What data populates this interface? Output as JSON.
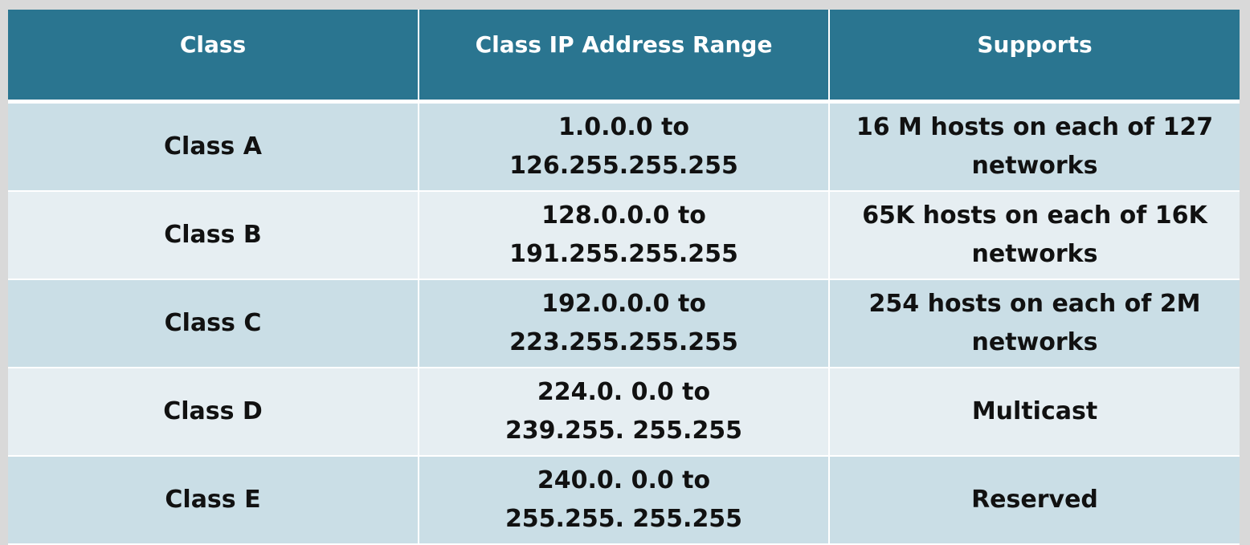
{
  "table": {
    "headers": [
      "Class",
      "Class IP Address Range",
      "Supports"
    ],
    "rows": [
      {
        "class": "Class A",
        "range_line1": "1.0.0.0 to",
        "range_line2": "126.255.255.255",
        "supports_line1": "16 M hosts on each of 127",
        "supports_line2": "networks"
      },
      {
        "class": "Class B",
        "range_line1": "128.0.0.0 to",
        "range_line2": "191.255.255.255",
        "supports_line1": "65K hosts on each of 16K",
        "supports_line2": "networks"
      },
      {
        "class": "Class C",
        "range_line1": "192.0.0.0 to",
        "range_line2": "223.255.255.255",
        "supports_line1": "254 hosts on each of 2M",
        "supports_line2": "networks"
      },
      {
        "class": "Class D",
        "range_line1": "224.0. 0.0 to",
        "range_line2": "239.255. 255.255",
        "supports_line1": "Multicast",
        "supports_line2": ""
      },
      {
        "class": "Class E",
        "range_line1": "240.0. 0.0 to",
        "range_line2": "255.255. 255.255",
        "supports_line1": "Reserved",
        "supports_line2": ""
      }
    ]
  },
  "colors": {
    "header_bg": "#2a7590",
    "row_odd_bg": "#cadee6",
    "row_even_bg": "#e6eef2",
    "page_bg": "#d9d9d9"
  }
}
